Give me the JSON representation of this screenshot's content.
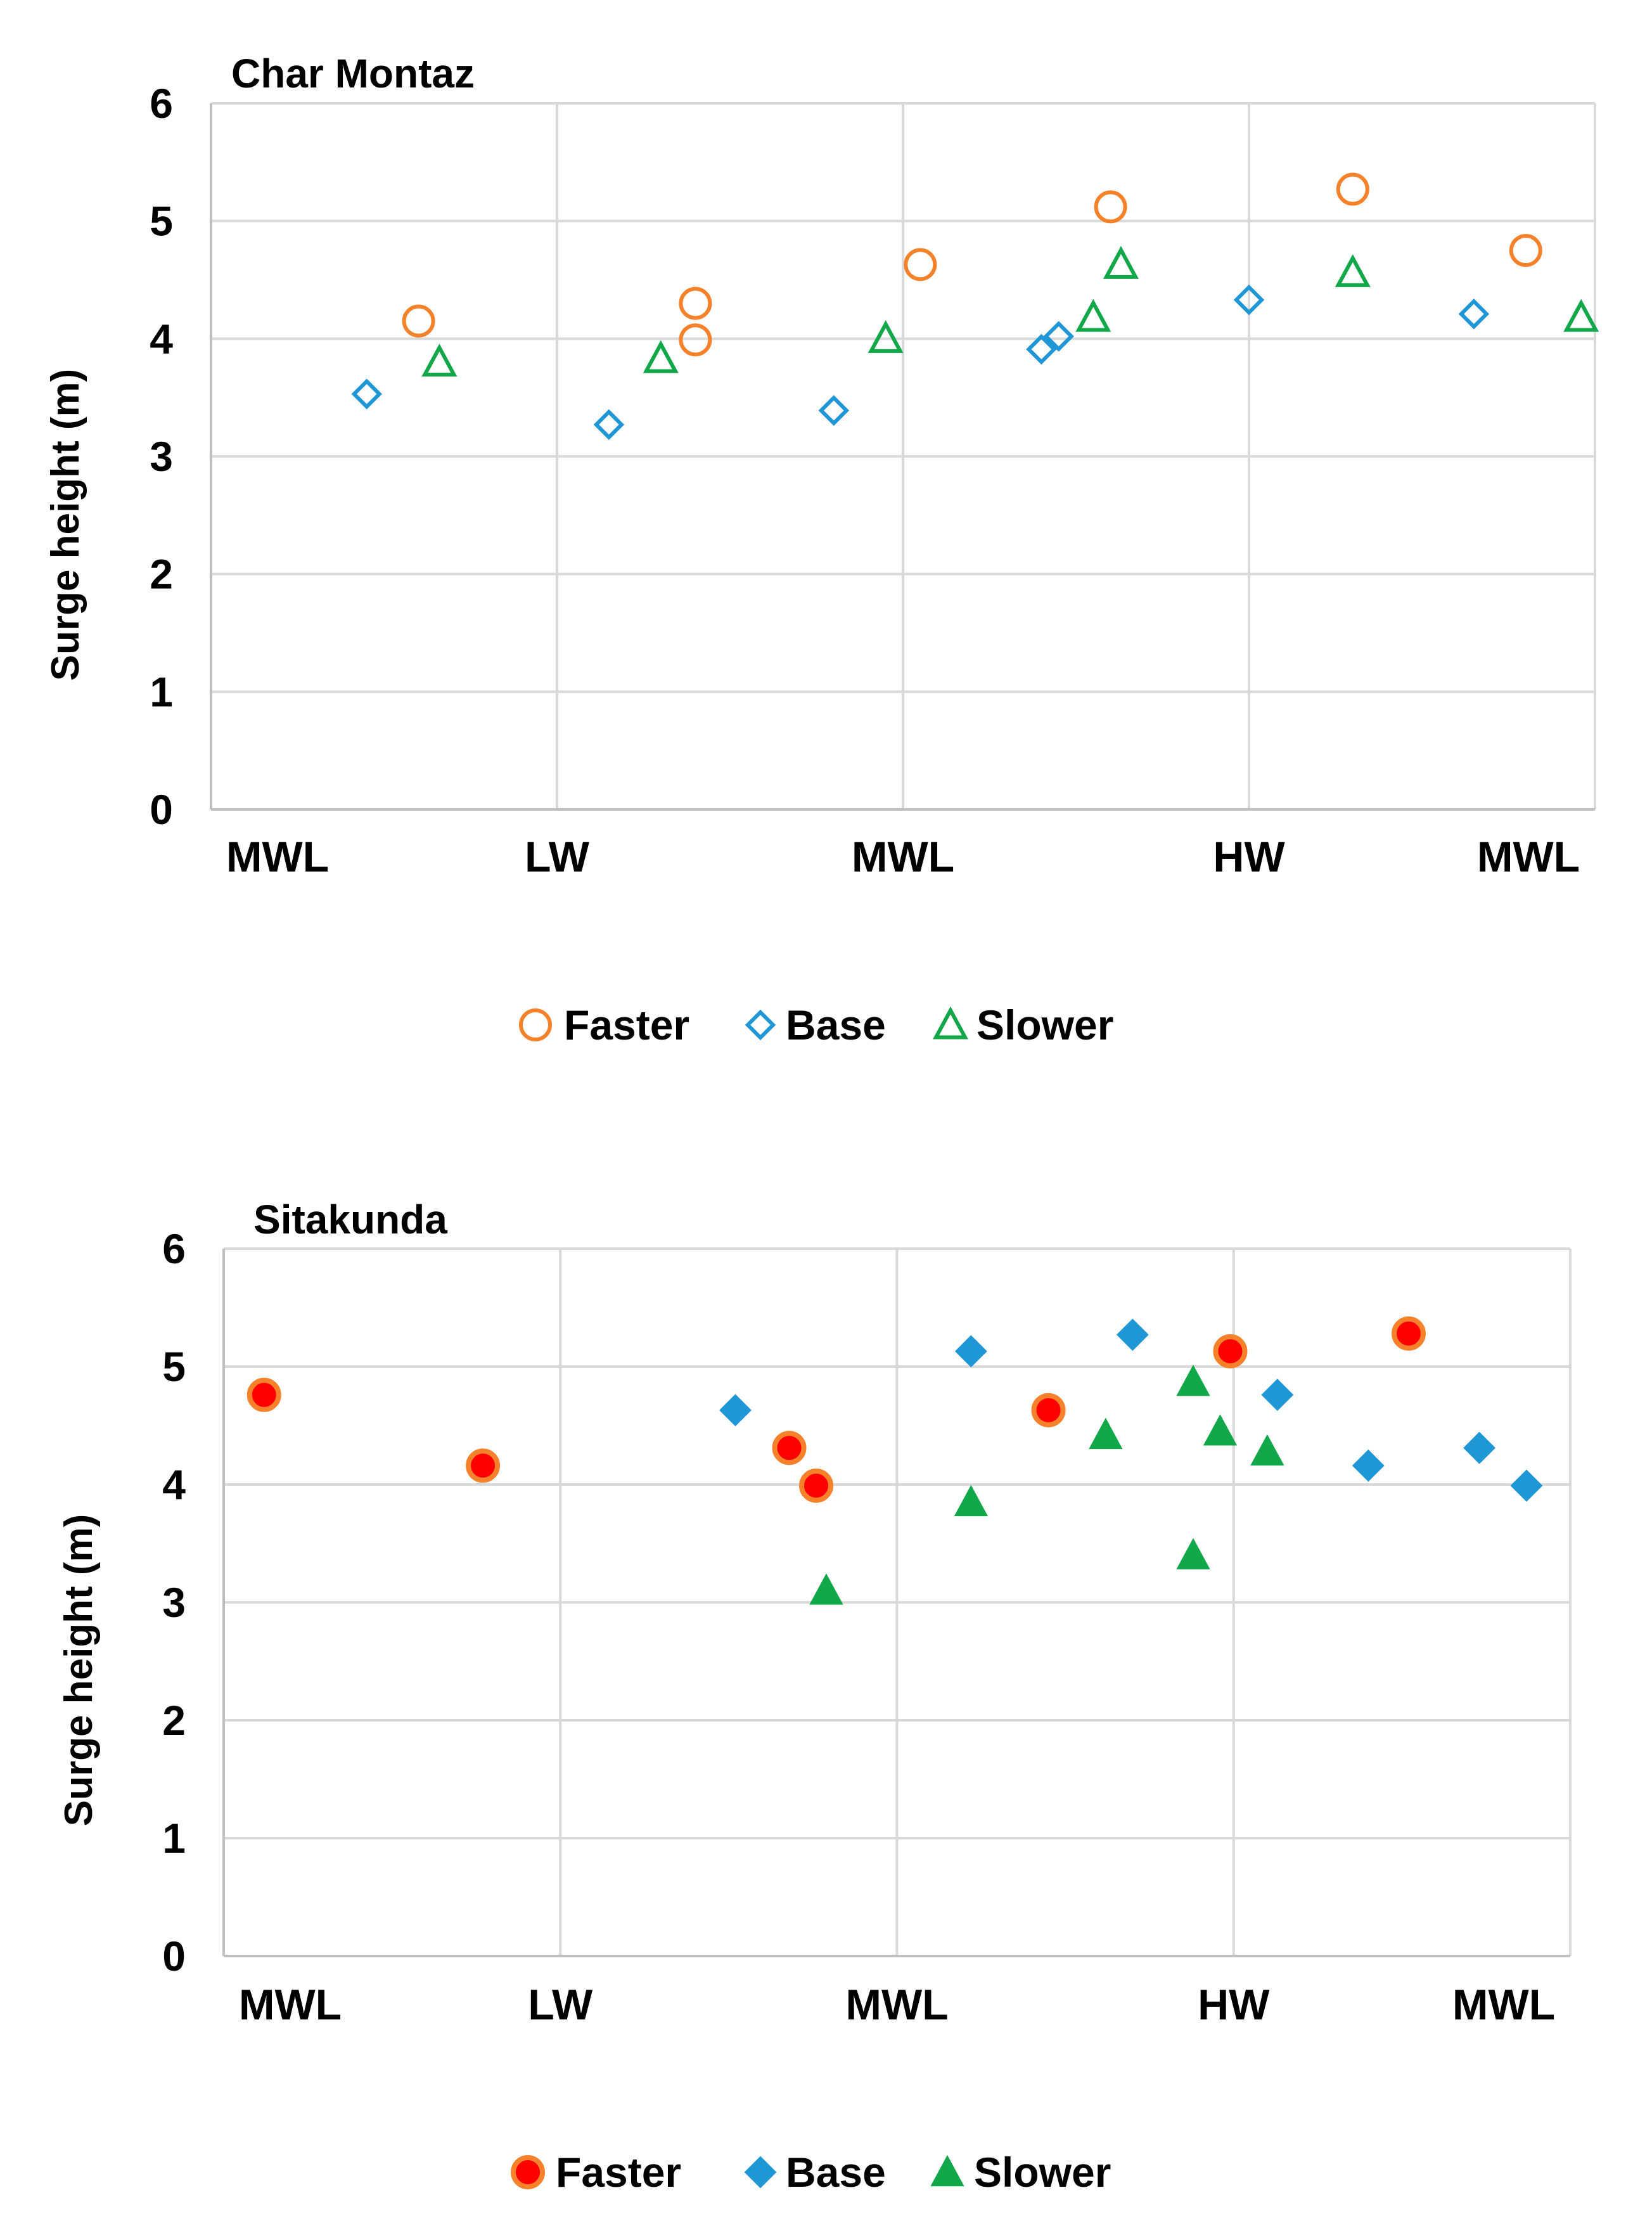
{
  "chart_data": [
    {
      "type": "scatter",
      "title": "Char Montaz",
      "ylabel": "Surge height (m)",
      "xlabel": "",
      "xlim": [
        0,
        4
      ],
      "ylim": [
        0,
        6
      ],
      "yticks": [
        "0",
        "1",
        "2",
        "3",
        "4",
        "5",
        "6"
      ],
      "xticks": [
        "MWL",
        "LW",
        "MWL",
        "HW",
        "MWL"
      ],
      "grid": true,
      "legend_position": "bottom",
      "colors": {
        "faster": "#F5822A",
        "base": "#1F96D6",
        "slower": "#12A84A"
      },
      "series": [
        {
          "name": "Faster",
          "marker": "circle-open",
          "points": [
            [
              0.6,
              4.15
            ],
            [
              1.4,
              4.3
            ],
            [
              1.4,
              3.99
            ],
            [
              2.05,
              4.63
            ],
            [
              2.6,
              5.12
            ],
            [
              3.3,
              5.27
            ],
            [
              3.8,
              4.75
            ]
          ]
        },
        {
          "name": "Base",
          "marker": "diamond-open",
          "points": [
            [
              0.45,
              3.53
            ],
            [
              1.15,
              3.27
            ],
            [
              1.8,
              3.39
            ],
            [
              2.4,
              3.91
            ],
            [
              2.45,
              4.02
            ],
            [
              3.0,
              4.33
            ],
            [
              3.65,
              4.21
            ]
          ]
        },
        {
          "name": "Slower",
          "marker": "triangle-open",
          "points": [
            [
              0.66,
              3.8
            ],
            [
              1.3,
              3.83
            ],
            [
              1.95,
              4.0
            ],
            [
              2.55,
              4.18
            ],
            [
              2.63,
              4.63
            ],
            [
              3.3,
              4.56
            ],
            [
              3.96,
              4.18
            ]
          ]
        }
      ]
    },
    {
      "type": "scatter",
      "title": "Sitakunda",
      "ylabel": "Surge height (m)",
      "xlabel": "",
      "xlim": [
        0,
        4
      ],
      "ylim": [
        0,
        6
      ],
      "yticks": [
        "0",
        "1",
        "2",
        "3",
        "4",
        "5",
        "6"
      ],
      "xticks": [
        "MWL",
        "LW",
        "MWL",
        "HW",
        "MWL"
      ],
      "grid": true,
      "legend_position": "bottom",
      "colors": {
        "faster": "#FF0000",
        "faster_edge": "#F5822A",
        "base": "#1F96D6",
        "slower": "#12A84A"
      },
      "series": [
        {
          "name": "Faster",
          "marker": "circle-filled",
          "points": [
            [
              0.12,
              4.76
            ],
            [
              0.77,
              4.16
            ],
            [
              1.68,
              4.31
            ],
            [
              1.76,
              3.99
            ],
            [
              2.45,
              4.63
            ],
            [
              2.99,
              5.13
            ],
            [
              3.52,
              5.28
            ]
          ]
        },
        {
          "name": "Base",
          "marker": "diamond-filled",
          "points": [
            [
              1.52,
              4.63
            ],
            [
              2.22,
              5.13
            ],
            [
              2.7,
              5.27
            ],
            [
              3.13,
              4.76
            ],
            [
              3.4,
              4.16
            ],
            [
              3.73,
              4.31
            ],
            [
              3.87,
              3.99
            ]
          ]
        },
        {
          "name": "Slower",
          "marker": "triangle-filled",
          "points": [
            [
              1.79,
              3.1
            ],
            [
              2.22,
              3.85
            ],
            [
              2.62,
              4.42
            ],
            [
              2.88,
              4.87
            ],
            [
              2.88,
              3.4
            ],
            [
              2.96,
              4.45
            ],
            [
              3.1,
              4.28
            ]
          ]
        }
      ]
    }
  ]
}
